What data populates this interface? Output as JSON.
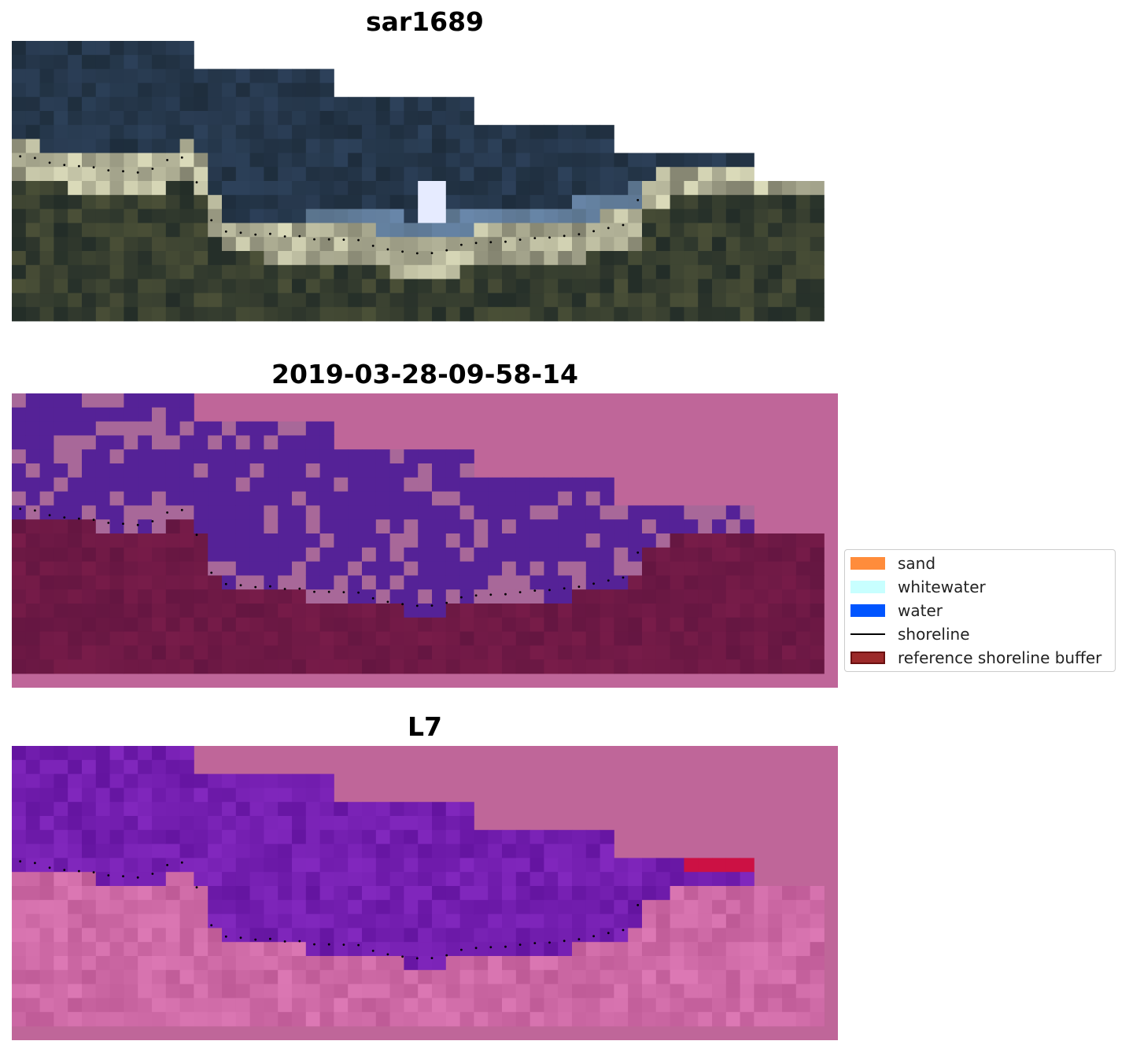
{
  "panels": [
    {
      "id": "rgb",
      "title": "sar1689"
    },
    {
      "id": "classified",
      "title": "2019-03-28-09-58-14"
    },
    {
      "id": "index",
      "title": "L7"
    }
  ],
  "legend": {
    "items": [
      {
        "label": "sand",
        "type": "patch",
        "color": "#ff8c3b"
      },
      {
        "label": "whitewater",
        "type": "patch",
        "color": "#c8ffff"
      },
      {
        "label": "water",
        "type": "patch",
        "color": "#0055ff"
      },
      {
        "label": "shoreline",
        "type": "line",
        "color": "#000000"
      },
      {
        "label": "reference shoreline buffer",
        "type": "patch",
        "color": "#9c2a2a",
        "border": "#6a1010"
      }
    ]
  },
  "colors": {
    "buffer_pink": "#bf6699",
    "deep_purple": "#552297",
    "light_mauve": "#a86899",
    "maroon": "#6a1a48",
    "index_purple": "#7a22a8",
    "index_pink": "#c870a8",
    "red_strip": "#cc1144"
  }
}
